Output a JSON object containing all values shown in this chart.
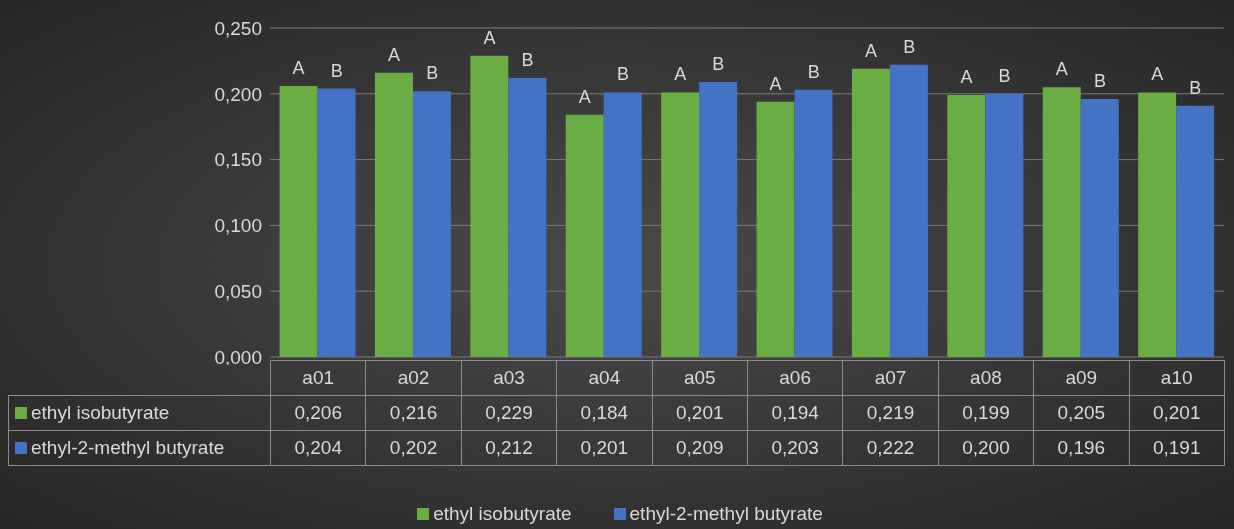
{
  "chart_data": {
    "type": "bar",
    "categories": [
      "a01",
      "a02",
      "a03",
      "a04",
      "a05",
      "a06",
      "a07",
      "a08",
      "a09",
      "a10"
    ],
    "series": [
      {
        "name": "ethyl isobutyrate",
        "color": "#6aad45",
        "values": [
          0.206,
          0.216,
          0.229,
          0.184,
          0.201,
          0.194,
          0.219,
          0.199,
          0.205,
          0.201
        ],
        "value_labels": [
          "0,206",
          "0,216",
          "0,229",
          "0,184",
          "0,201",
          "0,194",
          "0,219",
          "0,199",
          "0,205",
          "0,201"
        ]
      },
      {
        "name": "ethyl-2-methyl butyrate",
        "color": "#4472c4",
        "values": [
          0.204,
          0.202,
          0.212,
          0.201,
          0.209,
          0.203,
          0.222,
          0.2,
          0.196,
          0.191
        ],
        "value_labels": [
          "0,204",
          "0,202",
          "0,212",
          "0,201",
          "0,209",
          "0,203",
          "0,222",
          "0,200",
          "0,196",
          "0,191"
        ]
      }
    ],
    "ylim": [
      0,
      0.25
    ],
    "yticks": [
      {
        "value": 0,
        "label": "0,000"
      },
      {
        "value": 0.05,
        "label": "0,050"
      },
      {
        "value": 0.1,
        "label": "0,100"
      },
      {
        "value": 0.15,
        "label": "0,150"
      },
      {
        "value": 0.2,
        "label": "0,200"
      },
      {
        "value": 0.25,
        "label": "0,250"
      }
    ],
    "grid": "y",
    "legend": "bottom",
    "annotations": [
      {
        "text": "A",
        "x": "a01",
        "y": 0.206
      },
      {
        "text": "B",
        "x": "a01",
        "y": 0.204
      },
      {
        "text": "A",
        "x": "a02",
        "y": 0.216
      },
      {
        "text": "B",
        "x": "a02",
        "y": 0.202
      },
      {
        "text": "A",
        "x": "a03",
        "y": 0.229
      },
      {
        "text": "B",
        "x": "a03",
        "y": 0.212
      },
      {
        "text": "A",
        "x": "a04",
        "y": 0.184
      },
      {
        "text": "B",
        "x": "a04",
        "y": 0.201
      },
      {
        "text": "A",
        "x": "a05",
        "y": 0.201
      },
      {
        "text": "B",
        "x": "a05",
        "y": 0.209
      },
      {
        "text": "A",
        "x": "a06",
        "y": 0.194
      },
      {
        "text": "B",
        "x": "a06",
        "y": 0.203
      },
      {
        "text": "A",
        "x": "a07",
        "y": 0.219
      },
      {
        "text": "B",
        "x": "a07",
        "y": 0.222
      },
      {
        "text": "A",
        "x": "a08",
        "y": 0.199
      },
      {
        "text": "B",
        "x": "a08",
        "y": 0.2
      },
      {
        "text": "A",
        "x": "a09",
        "y": 0.205
      },
      {
        "text": "B",
        "x": "a09",
        "y": 0.196
      },
      {
        "text": "A",
        "x": "a10",
        "y": 0.201
      },
      {
        "text": "B",
        "x": "a10",
        "y": 0.191
      }
    ]
  }
}
